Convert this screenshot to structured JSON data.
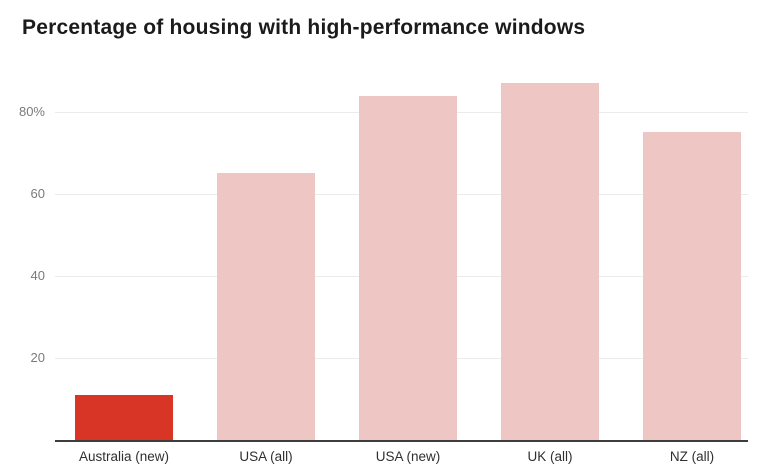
{
  "chart_data": {
    "type": "bar",
    "title": "Percentage of housing with high-performance windows",
    "categories": [
      "Australia (new)",
      "USA (all)",
      "USA (new)",
      "UK (all)",
      "NZ (all)"
    ],
    "values": [
      11,
      65,
      84,
      87,
      75
    ],
    "xlabel": "",
    "ylabel": "",
    "ylim": [
      0,
      90
    ],
    "yticks": [
      {
        "value": 20,
        "label": "20"
      },
      {
        "value": 40,
        "label": "40"
      },
      {
        "value": 60,
        "label": "60"
      },
      {
        "value": 80,
        "label": "80%"
      }
    ],
    "grid": true,
    "legend_position": "none",
    "bar_colors": [
      "#d93527",
      "#eec6c4",
      "#eec6c4",
      "#eec6c4",
      "#eec6c4"
    ],
    "highlight_color": "#d93527",
    "base_color": "#eec6c4",
    "colors": {
      "title": "#1b1b1b",
      "gridline": "#ebebeb",
      "axis_line": "#3d3d3d",
      "ytick_text": "#7a7a7a",
      "xtick_text": "#2f2f2f",
      "background": "#ffffff"
    }
  }
}
